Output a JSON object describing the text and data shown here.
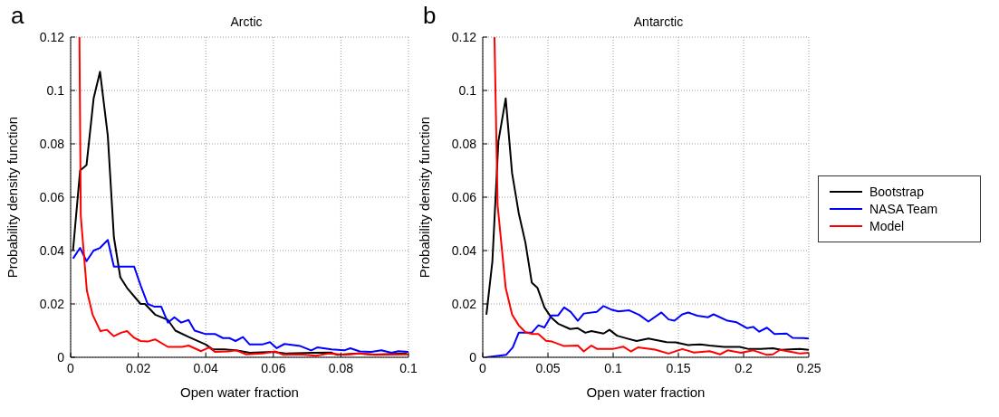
{
  "chart_data": [
    {
      "type": "line",
      "title": "Arctic",
      "xlabel": "Open water fraction",
      "ylabel": "Probability density function",
      "annotations": [
        "a"
      ],
      "xlim": [
        0,
        0.1
      ],
      "xticks": [
        0,
        0.02,
        0.04,
        0.06,
        0.08,
        0.1
      ],
      "ylim": [
        0,
        0.12
      ],
      "yticks": [
        0,
        0.02,
        0.04,
        0.06,
        0.08,
        0.1,
        0.12
      ],
      "grid": true,
      "legend": false,
      "line_style": "solid",
      "marker": "none",
      "series": [
        {
          "color": "#000000",
          "x": [
            0.0007,
            0.0028,
            0.0047,
            0.0068,
            0.0087,
            0.011,
            0.0128,
            0.0147,
            0.0167,
            0.0207,
            0.022,
            0.025,
            0.0288,
            0.031,
            0.035,
            0.04,
            0.042,
            0.0456,
            0.049,
            0.053,
            0.06,
            0.064,
            0.072,
            0.077,
            0.079,
            0.085,
            0.09,
            0.0995
          ],
          "values": [
            0.04,
            0.07,
            0.072,
            0.097,
            0.107,
            0.083,
            0.045,
            0.03,
            0.026,
            0.02,
            0.02,
            0.016,
            0.014,
            0.01,
            0.0076,
            0.0048,
            0.003,
            0.003,
            0.0026,
            0.0017,
            0.002,
            0.0014,
            0.0017,
            0.0018,
            0.0009,
            0.0014,
            0.001,
            0.0014
          ]
        },
        {
          "color": "#0000ff",
          "x": [
            0.0007,
            0.0028,
            0.0047,
            0.0068,
            0.0087,
            0.011,
            0.0128,
            0.0147,
            0.0167,
            0.0188,
            0.0207,
            0.0228,
            0.0247,
            0.0268,
            0.0288,
            0.0307,
            0.0327,
            0.0349,
            0.0367,
            0.04,
            0.0428,
            0.0451,
            0.047,
            0.0488,
            0.051,
            0.053,
            0.0567,
            0.059,
            0.061,
            0.0633,
            0.068,
            0.0712,
            0.073,
            0.0772,
            0.081,
            0.0828,
            0.0856,
            0.089,
            0.092,
            0.095,
            0.097,
            0.1
          ],
          "values": [
            0.037,
            0.041,
            0.036,
            0.04,
            0.041,
            0.044,
            0.034,
            0.034,
            0.034,
            0.034,
            0.027,
            0.02,
            0.019,
            0.019,
            0.013,
            0.015,
            0.013,
            0.014,
            0.01,
            0.0087,
            0.0087,
            0.0072,
            0.0072,
            0.0061,
            0.0076,
            0.0048,
            0.0048,
            0.0057,
            0.0034,
            0.005,
            0.0042,
            0.0026,
            0.0037,
            0.003,
            0.0026,
            0.0034,
            0.0022,
            0.002,
            0.0026,
            0.0017,
            0.0023,
            0.002
          ]
        },
        {
          "color": "#ff0000",
          "x": [
            0.0026,
            0.003,
            0.0048,
            0.0065,
            0.0088,
            0.0107,
            0.0128,
            0.0149,
            0.0167,
            0.0188,
            0.0207,
            0.0228,
            0.025,
            0.0288,
            0.033,
            0.0349,
            0.0386,
            0.041,
            0.0428,
            0.0465,
            0.049,
            0.052,
            0.0567,
            0.0605,
            0.063,
            0.068,
            0.0726,
            0.0763,
            0.081,
            0.0856,
            0.09,
            0.1
          ],
          "values": [
            0.12,
            0.053,
            0.025,
            0.016,
            0.0098,
            0.0103,
            0.0079,
            0.0092,
            0.0098,
            0.0073,
            0.0061,
            0.0059,
            0.0067,
            0.0039,
            0.0039,
            0.0044,
            0.0023,
            0.0037,
            0.002,
            0.0022,
            0.0026,
            0.0011,
            0.0014,
            0.0022,
            0.0009,
            0.0011,
            0.0006,
            0.0014,
            0.0009,
            0.0014,
            0.0009,
            0.0011
          ]
        }
      ]
    },
    {
      "type": "line",
      "title": "Antarctic",
      "xlabel": "Open water fraction",
      "ylabel": "Probability density function",
      "annotations": [
        "b"
      ],
      "xlim": [
        0,
        0.25
      ],
      "xticks": [
        0,
        0.05,
        0.1,
        0.15,
        0.2,
        0.25
      ],
      "ylim": [
        0,
        0.12
      ],
      "yticks": [
        0,
        0.02,
        0.04,
        0.06,
        0.08,
        0.1,
        0.12
      ],
      "grid": true,
      "legend": "right",
      "line_style": "solid",
      "marker": "none",
      "series": [
        {
          "name": "Bootstrap",
          "color": "#000000",
          "x": [
            0.0028,
            0.0074,
            0.012,
            0.0176,
            0.0225,
            0.0276,
            0.0327,
            0.0376,
            0.042,
            0.0473,
            0.0527,
            0.0578,
            0.067,
            0.0729,
            0.0787,
            0.0833,
            0.0926,
            0.0972,
            0.103,
            0.111,
            0.118,
            0.127,
            0.141,
            0.148,
            0.1575,
            0.167,
            0.174,
            0.185,
            0.197,
            0.204,
            0.213,
            0.2225,
            0.229,
            0.243,
            0.25
          ],
          "values": [
            0.016,
            0.036,
            0.081,
            0.097,
            0.069,
            0.054,
            0.043,
            0.028,
            0.026,
            0.0187,
            0.0148,
            0.0126,
            0.0106,
            0.0109,
            0.0092,
            0.0098,
            0.0089,
            0.0103,
            0.0081,
            0.007,
            0.0061,
            0.007,
            0.0057,
            0.0056,
            0.0046,
            0.0048,
            0.0044,
            0.0039,
            0.0039,
            0.0031,
            0.0031,
            0.0034,
            0.0028,
            0.0031,
            0.0028
          ]
        },
        {
          "name": "NASA Team",
          "color": "#0000ff",
          "x": [
            0.0028,
            0.0125,
            0.0179,
            0.023,
            0.0276,
            0.0327,
            0.0376,
            0.0427,
            0.0473,
            0.0527,
            0.0578,
            0.0624,
            0.0675,
            0.0729,
            0.0775,
            0.0875,
            0.0926,
            0.0984,
            0.104,
            0.1123,
            0.12,
            0.127,
            0.137,
            0.1425,
            0.147,
            0.153,
            0.1575,
            0.1645,
            0.1726,
            0.177,
            0.1877,
            0.1947,
            0.2028,
            0.2074,
            0.212,
            0.2179,
            0.2237,
            0.233,
            0.2376,
            0.2457,
            0.25
          ],
          "values": [
            0,
            0.0006,
            0.0009,
            0.0037,
            0.0092,
            0.0092,
            0.0092,
            0.012,
            0.0112,
            0.0157,
            0.0157,
            0.0187,
            0.017,
            0.0137,
            0.0164,
            0.017,
            0.0192,
            0.0179,
            0.0172,
            0.0176,
            0.0159,
            0.0134,
            0.0168,
            0.0142,
            0.0137,
            0.0161,
            0.0168,
            0.0156,
            0.015,
            0.0161,
            0.0137,
            0.0131,
            0.0109,
            0.0114,
            0.0096,
            0.0111,
            0.0087,
            0.0089,
            0.0073,
            0.0072,
            0.007
          ]
        },
        {
          "name": "Model",
          "color": "#ff0000",
          "x": [
            0.009,
            0.0114,
            0.0176,
            0.0225,
            0.0276,
            0.0327,
            0.038,
            0.0427,
            0.0485,
            0.0531,
            0.0624,
            0.0729,
            0.0775,
            0.0833,
            0.0879,
            0.0995,
            0.1077,
            0.1135,
            0.119,
            0.132,
            0.1425,
            0.153,
            0.162,
            0.174,
            0.182,
            0.1877,
            0.198,
            0.2074,
            0.2179,
            0.2225,
            0.228,
            0.2364,
            0.2434,
            0.25
          ],
          "values": [
            0.12,
            0.057,
            0.026,
            0.016,
            0.012,
            0.0094,
            0.0087,
            0.0087,
            0.0062,
            0.0059,
            0.0042,
            0.0044,
            0.0022,
            0.0044,
            0.0031,
            0.0031,
            0.004,
            0.0022,
            0.0037,
            0.0029,
            0.0014,
            0.0031,
            0.0018,
            0.0023,
            0.0011,
            0.0026,
            0.0017,
            0.0026,
            0.0009,
            0.0011,
            0.0028,
            0.002,
            0.0014,
            0.0017
          ]
        }
      ]
    }
  ]
}
